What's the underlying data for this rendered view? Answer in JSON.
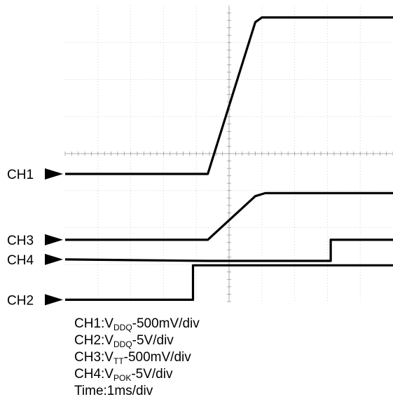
{
  "chart_data": {
    "type": "line",
    "title": "",
    "grid": true,
    "x_unit": "div",
    "x_range": [
      0,
      10
    ],
    "y_unit": "div",
    "y_range": [
      0,
      8
    ],
    "channels": [
      {
        "id": "CH1",
        "label": "CH1",
        "marker_level": 3.45
      },
      {
        "id": "CH3",
        "label": "CH3",
        "marker_level": 1.67
      },
      {
        "id": "CH4",
        "label": "CH4",
        "marker_level": 1.14
      },
      {
        "id": "CH2",
        "label": "CH2",
        "marker_level": 0.05
      }
    ],
    "series": [
      {
        "name": "CH1",
        "points": [
          [
            0,
            3.45
          ],
          [
            4.35,
            3.45
          ],
          [
            5.8,
            7.55
          ],
          [
            6.0,
            7.68
          ],
          [
            10,
            7.68
          ]
        ]
      },
      {
        "name": "CH3",
        "points": [
          [
            0,
            1.67
          ],
          [
            4.35,
            1.67
          ],
          [
            5.8,
            2.85
          ],
          [
            6.1,
            2.93
          ],
          [
            10,
            2.93
          ]
        ]
      },
      {
        "name": "CH4",
        "points": [
          [
            0,
            1.14
          ],
          [
            4.35,
            1.1
          ],
          [
            8.1,
            1.1
          ],
          [
            8.1,
            1.67
          ],
          [
            10,
            1.67
          ]
        ]
      },
      {
        "name": "CH2",
        "points": [
          [
            0,
            0.05
          ],
          [
            3.9,
            0.05
          ],
          [
            3.9,
            0.98
          ],
          [
            10,
            0.98
          ]
        ]
      }
    ],
    "legend": [
      {
        "channel": "CH1",
        "signal": "V",
        "sub": "DDQ",
        "scale": "-500mV/div"
      },
      {
        "channel": "CH2",
        "signal": "V",
        "sub": "DDQ",
        "scale": "-5V/div"
      },
      {
        "channel": "CH3",
        "signal": "V",
        "sub": "TT",
        "scale": "-500mV/div"
      },
      {
        "channel": "CH4",
        "signal": "V",
        "sub": "POK",
        "scale": "-5V/div"
      }
    ],
    "timebase": "Time:1ms/div"
  }
}
